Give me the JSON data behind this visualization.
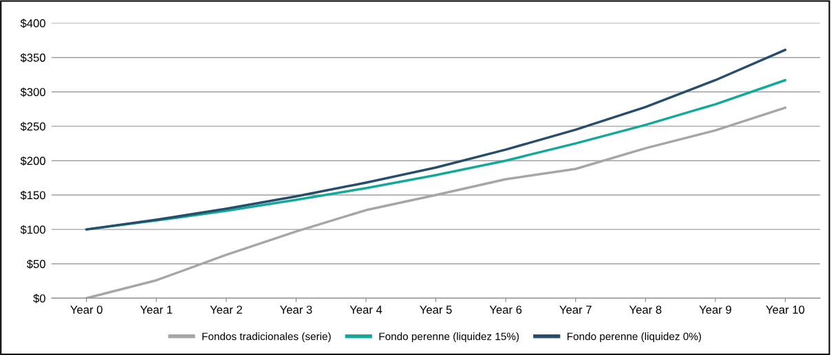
{
  "chart_data": {
    "type": "line",
    "categories": [
      "Year 0",
      "Year 1",
      "Year 2",
      "Year 3",
      "Year 4",
      "Year 5",
      "Year 6",
      "Year 7",
      "Year 8",
      "Year 9",
      "Year 10"
    ],
    "series": [
      {
        "name": "Fondos tradicionales (serie)",
        "color": "#a6a6a6",
        "values": [
          0,
          26,
          63,
          97,
          128,
          150,
          173,
          188,
          218,
          244,
          277
        ]
      },
      {
        "name": "Fondo perenne (liquidez 15%)",
        "color": "#12a89a",
        "values": [
          100,
          113,
          127,
          143,
          160,
          179,
          200,
          225,
          252,
          282,
          317
        ]
      },
      {
        "name": "Fondo perenne (liquidez 0%)",
        "color": "#264d6b",
        "values": [
          100,
          114,
          130,
          148,
          168,
          190,
          216,
          245,
          278,
          317,
          361
        ]
      }
    ],
    "ylim": [
      0,
      400
    ],
    "yticks": [
      {
        "value": 0,
        "label": "$0"
      },
      {
        "value": 50,
        "label": "$50"
      },
      {
        "value": 100,
        "label": "$100"
      },
      {
        "value": 150,
        "label": "$150"
      },
      {
        "value": 200,
        "label": "$200"
      },
      {
        "value": 250,
        "label": "$250"
      },
      {
        "value": 300,
        "label": "$300"
      },
      {
        "value": 350,
        "label": "$350"
      },
      {
        "value": 400,
        "label": "$400"
      }
    ],
    "grid": "y",
    "legend": "bottom",
    "marker": "none",
    "line_style": "solid"
  }
}
